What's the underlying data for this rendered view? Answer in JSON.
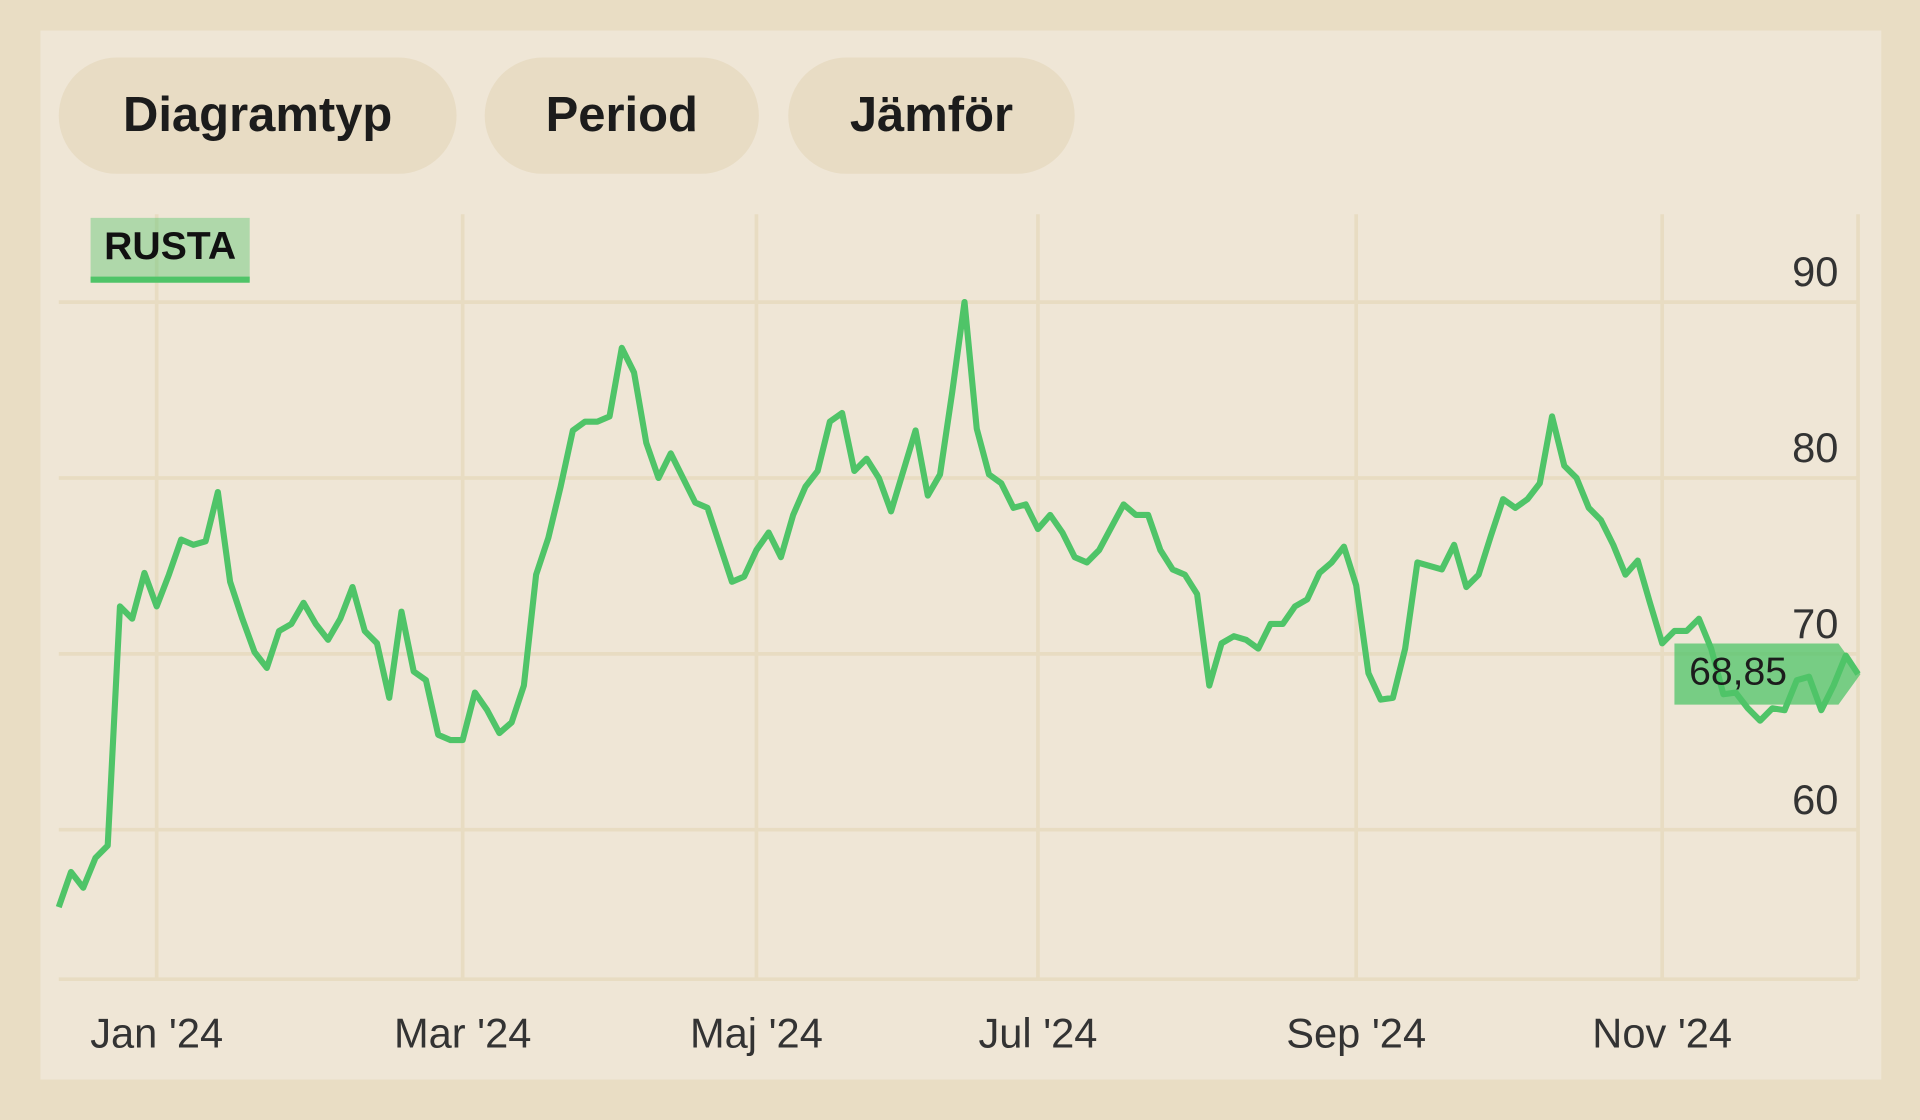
{
  "toolbar": {
    "buttons": [
      "Diagramtyp",
      "Period",
      "Jämför"
    ]
  },
  "chart_data": {
    "type": "line",
    "categories": [
      null,
      null,
      null,
      null,
      null,
      null,
      null,
      null,
      "Jan '24",
      null,
      null,
      null,
      null,
      null,
      null,
      null,
      null,
      null,
      null,
      null,
      null,
      null,
      null,
      null,
      null,
      null,
      null,
      null,
      null,
      null,
      null,
      null,
      null,
      "Mar '24",
      null,
      null,
      null,
      null,
      null,
      null,
      null,
      null,
      null,
      null,
      null,
      null,
      null,
      null,
      null,
      null,
      null,
      null,
      null,
      null,
      null,
      null,
      null,
      "Maj '24",
      null,
      null,
      null,
      null,
      null,
      null,
      null,
      null,
      null,
      null,
      null,
      null,
      null,
      null,
      null,
      null,
      null,
      null,
      null,
      null,
      null,
      null,
      "Jul '24",
      null,
      null,
      null,
      null,
      null,
      null,
      null,
      null,
      null,
      null,
      null,
      null,
      null,
      null,
      null,
      null,
      null,
      null,
      null,
      null,
      null,
      null,
      null,
      null,
      null,
      "Sep '24",
      null,
      null,
      null,
      null,
      null,
      null,
      null,
      null,
      null,
      null,
      null,
      null,
      null,
      null,
      null,
      null,
      null,
      null,
      null,
      null,
      null,
      null,
      null,
      null,
      "Nov '24",
      null,
      null,
      null,
      null,
      null,
      null,
      null,
      null,
      null,
      null,
      null,
      null,
      null,
      null,
      null,
      null
    ],
    "series": [
      {
        "name": "RUSTA",
        "color": "#4fc468",
        "values": [
          55.6,
          57.6,
          56.7,
          58.4,
          59.1,
          72.7,
          72,
          74.6,
          72.7,
          74.5,
          76.5,
          76.2,
          76.4,
          79.2,
          74.1,
          72,
          70.1,
          69.2,
          71.3,
          71.7,
          72.9,
          71.7,
          70.8,
          72,
          73.8,
          71.3,
          70.6,
          67.5,
          72.4,
          69,
          68.5,
          65.4,
          65.1,
          65.1,
          67.8,
          66.8,
          65.5,
          66.1,
          68.2,
          74.5,
          76.6,
          79.5,
          82.7,
          83.2,
          83.2,
          83.5,
          87.4,
          86,
          82,
          80,
          81.4,
          80,
          78.6,
          78.3,
          76.2,
          74.1,
          74.4,
          75.9,
          76.9,
          75.5,
          77.9,
          79.5,
          80.4,
          83.2,
          83.7,
          80.4,
          81.1,
          80,
          78.1,
          80.4,
          82.7,
          79,
          80.2,
          84.9,
          90,
          82.8,
          80.2,
          79.7,
          78.3,
          78.5,
          77.1,
          77.9,
          76.9,
          75.5,
          75.2,
          75.9,
          77.2,
          78.5,
          77.9,
          77.9,
          75.9,
          74.8,
          74.5,
          73.4,
          68.2,
          70.6,
          71,
          70.8,
          70.3,
          71.7,
          71.7,
          72.7,
          73.1,
          74.6,
          75.2,
          76.1,
          73.9,
          68.9,
          67.4,
          67.5,
          70.3,
          75.2,
          75,
          74.8,
          76.2,
          73.8,
          74.5,
          76.7,
          78.8,
          78.3,
          78.8,
          79.7,
          83.5,
          80.7,
          80,
          78.3,
          77.6,
          76.2,
          74.5,
          75.3,
          72.9,
          70.6,
          71.3,
          71.3,
          72,
          70.3,
          67.7,
          67.8,
          66.9,
          66.2,
          66.9,
          66.8,
          68.5,
          68.7,
          66.8,
          68.2,
          69.9,
          68.85
        ],
        "value_labels": [
          null,
          null,
          null,
          null,
          null,
          null,
          null,
          null,
          null,
          null,
          null,
          null,
          null,
          null,
          null,
          null,
          null,
          null,
          null,
          null,
          null,
          null,
          null,
          null,
          null,
          null,
          null,
          null,
          null,
          null,
          null,
          null,
          null,
          null,
          null,
          null,
          null,
          null,
          null,
          null,
          null,
          null,
          null,
          null,
          null,
          null,
          null,
          null,
          null,
          null,
          null,
          null,
          null,
          null,
          null,
          null,
          null,
          null,
          null,
          null,
          null,
          null,
          null,
          null,
          null,
          null,
          null,
          null,
          null,
          null,
          null,
          null,
          null,
          null,
          null,
          null,
          null,
          null,
          null,
          null,
          null,
          null,
          null,
          null,
          null,
          null,
          null,
          null,
          null,
          null,
          null,
          null,
          null,
          null,
          null,
          null,
          null,
          null,
          null,
          null,
          null,
          null,
          null,
          null,
          null,
          null,
          null,
          null,
          null,
          null,
          null,
          null,
          null,
          null,
          null,
          null,
          null,
          null,
          null,
          null,
          null,
          null,
          null,
          null,
          null,
          null,
          null,
          null,
          null,
          null,
          null,
          null,
          null,
          null,
          null,
          null,
          null,
          null,
          null,
          null,
          null,
          null,
          null,
          null,
          null,
          null,
          null,
          "68,85"
        ]
      }
    ],
    "ylim": [
      51.5,
      95
    ],
    "yticks": [
      60,
      70,
      80,
      90
    ],
    "grid": true
  }
}
